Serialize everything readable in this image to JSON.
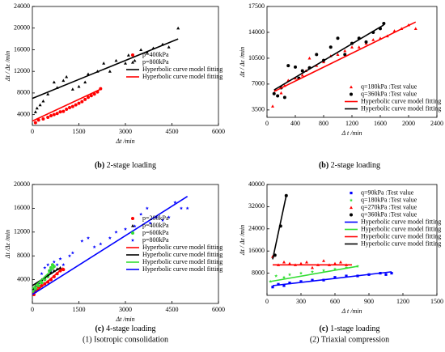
{
  "chart_data": [
    {
      "type": "scatter",
      "xlabel": "Δt /min",
      "ylabel": "Δt / Δε /min",
      "xlim": [
        0,
        6000
      ],
      "xticks": [
        0,
        1500,
        3000,
        4500,
        6000
      ],
      "ylim": [
        2000,
        24000
      ],
      "yticks": [
        4000,
        8000,
        12000,
        16000,
        20000,
        24000
      ],
      "legend": "center right",
      "caption_tag": "(b)",
      "caption": "2-stage loading",
      "series": [
        {
          "name": "p=400kPa",
          "color": "#ff0000",
          "marker": "circle",
          "x": [
            100,
            200,
            350,
            500,
            600,
            700,
            800,
            900,
            1000,
            1100,
            1200,
            1300,
            1400,
            1500,
            1600,
            1700,
            1800,
            1900,
            2000,
            2100,
            2200
          ],
          "values": [
            2500,
            3000,
            3200,
            3500,
            3800,
            4000,
            4200,
            4500,
            4600,
            5000,
            5300,
            5500,
            5800,
            6100,
            6400,
            6800,
            7200,
            7500,
            7800,
            8200,
            8800
          ]
        },
        {
          "name": "p=800kPa",
          "color": "#000000",
          "marker": "triangle",
          "x": [
            100,
            150,
            250,
            350,
            500,
            700,
            800,
            1000,
            1100,
            1300,
            1500,
            1700,
            1800,
            2100,
            2300,
            2500,
            2700,
            3000,
            3100,
            3300,
            3500,
            3700,
            3900,
            4200,
            4400,
            4700
          ],
          "values": [
            4500,
            5200,
            5800,
            6500,
            7800,
            10000,
            9000,
            10300,
            11000,
            8700,
            9200,
            10000,
            11500,
            12000,
            13500,
            12000,
            14000,
            13500,
            15000,
            14000,
            16000,
            15500,
            16300,
            17000,
            16500,
            20000
          ]
        },
        {
          "name": "Hyperbolic curve model fitting",
          "color": "#000000",
          "marker": "line",
          "x": [
            0,
            4700
          ],
          "values": [
            7000,
            18000
          ]
        },
        {
          "name": "Hyperbolic curve model fitting",
          "color": "#ff0000",
          "marker": "line",
          "x": [
            0,
            2200
          ],
          "values": [
            2800,
            8700
          ]
        }
      ]
    },
    {
      "type": "scatter",
      "xlabel": "Δ t /min",
      "ylabel": "Δt / Δε /min",
      "xlim": [
        0,
        2400
      ],
      "xticks": [
        0,
        400,
        800,
        1200,
        1600,
        2000,
        2400
      ],
      "ylim": [
        2500,
        17500
      ],
      "yticks": [
        3500,
        7000,
        10500,
        14000,
        17500
      ],
      "legend": "lower right",
      "caption_tag": "(b)",
      "caption": "2-stage loading",
      "series": [
        {
          "name": "q=180kPa :Test value",
          "color": "#ff0000",
          "marker": "triangle",
          "x": [
            80,
            120,
            200,
            250,
            300,
            400,
            500,
            550,
            600,
            700,
            800,
            900,
            1000,
            1100,
            1200,
            1300,
            1400,
            1500,
            1600,
            1700,
            1800,
            1900,
            2000,
            2100
          ],
          "values": [
            4000,
            6200,
            5800,
            6800,
            7500,
            7800,
            8200,
            8800,
            10500,
            9500,
            10000,
            10800,
            11000,
            11500,
            12000,
            12000,
            12500,
            13000,
            13200,
            13500,
            14200,
            14500,
            15000,
            14500
          ]
        },
        {
          "name": "q=360kPa :Test value",
          "color": "#000000",
          "marker": "circle",
          "x": [
            100,
            150,
            200,
            250,
            300,
            400,
            450,
            500,
            600,
            700,
            800,
            900,
            1000,
            1100,
            1200,
            1300,
            1400,
            1500,
            1600,
            1650
          ],
          "values": [
            5700,
            5400,
            6500,
            5200,
            9500,
            9300,
            7800,
            8800,
            9200,
            11000,
            10200,
            12000,
            13200,
            11000,
            12500,
            13200,
            12700,
            14000,
            14500,
            15200
          ]
        },
        {
          "name": "Hyperbolic curve model fitting",
          "color": "#ff0000",
          "marker": "line",
          "x": [
            100,
            2100
          ],
          "values": [
            6000,
            15400
          ]
        },
        {
          "name": "Hyperbolic curve model fitting",
          "color": "#000000",
          "marker": "line",
          "x": [
            100,
            1650
          ],
          "values": [
            6200,
            15000
          ]
        }
      ]
    },
    {
      "type": "scatter",
      "xlabel": "Δt /min",
      "ylabel": "Δt /Δε /min",
      "xlim": [
        0,
        6000
      ],
      "xticks": [
        0,
        1500,
        3000,
        4500,
        6000
      ],
      "ylim": [
        0,
        20000
      ],
      "yticks": [
        4000,
        8000,
        12000,
        16000,
        20000
      ],
      "legend": "center right",
      "caption_tag": "(c)",
      "caption": "4-stage loading",
      "series": [
        {
          "name": "p=200kPa",
          "color": "#ff0000",
          "marker": "circle",
          "x": [
            50,
            100,
            150,
            200,
            300,
            400,
            500,
            600,
            700,
            800,
            900,
            1000
          ],
          "values": [
            1500,
            2000,
            2300,
            2800,
            3000,
            3300,
            3600,
            4000,
            4500,
            5000,
            5500,
            5700
          ]
        },
        {
          "name": "p=400kPa",
          "color": "#000000",
          "marker": "triangle",
          "x": [
            50,
            100,
            200,
            300,
            400,
            500,
            600,
            700,
            800,
            900
          ],
          "values": [
            2500,
            3000,
            3500,
            4000,
            4400,
            4800,
            5200,
            5500,
            5800,
            6000
          ]
        },
        {
          "name": "p=600kPa",
          "color": "#33dd33",
          "marker": "circle",
          "x": [
            50,
            100,
            200,
            300,
            400,
            500,
            550,
            600,
            650,
            700
          ],
          "values": [
            2000,
            2500,
            3000,
            3500,
            4000,
            4500,
            5500,
            6000,
            6500,
            6200
          ]
        },
        {
          "name": "p=800kPa",
          "color": "#0000ff",
          "marker": "star",
          "x": [
            100,
            200,
            300,
            400,
            500,
            600,
            700,
            800,
            900,
            1000,
            1200,
            1300,
            1600,
            1800,
            2000,
            2200,
            2500,
            2700,
            3000,
            3300,
            3500,
            3700,
            3800,
            4000,
            4200,
            4400,
            4600,
            4800,
            5000
          ],
          "values": [
            2000,
            3500,
            5000,
            6000,
            6500,
            5500,
            7000,
            6500,
            7500,
            6500,
            8000,
            8500,
            10500,
            11000,
            9500,
            10000,
            11000,
            12000,
            12500,
            13000,
            15000,
            16000,
            13500,
            14500,
            14000,
            14500,
            17000,
            16000,
            16000
          ]
        },
        {
          "name": "Hyperbolic curve model fitting",
          "color": "#ff0000",
          "marker": "line",
          "x": [
            0,
            1000
          ],
          "values": [
            1500,
            6000
          ]
        },
        {
          "name": "Hyperbolic curve model fitting",
          "color": "#000000",
          "marker": "line",
          "x": [
            0,
            900
          ],
          "values": [
            3000,
            6000
          ]
        },
        {
          "name": "Hyperbolic curve model fitting",
          "color": "#33dd33",
          "marker": "line",
          "x": [
            0,
            700
          ],
          "values": [
            2500,
            6000
          ]
        },
        {
          "name": "Hyperbolic curve model fitting",
          "color": "#0000ff",
          "marker": "line",
          "x": [
            0,
            5000
          ],
          "values": [
            1500,
            18000
          ]
        }
      ]
    },
    {
      "type": "scatter",
      "xlabel": "Δ t /min",
      "ylabel": "Δt / Δε /min",
      "xlim": [
        0,
        1500
      ],
      "xticks": [
        0,
        300,
        600,
        900,
        1200,
        1500
      ],
      "ylim": [
        0,
        40000
      ],
      "yticks": [
        8000,
        16000,
        24000,
        32000,
        40000
      ],
      "legend": "upper right",
      "caption_tag": "(c)",
      "caption": "1-stage loading",
      "series": [
        {
          "name": "q=90kPa :Test value",
          "color": "#0000ff",
          "marker": "square",
          "x": [
            50,
            100,
            150,
            200,
            300,
            400,
            500,
            600,
            700,
            800,
            900,
            1000,
            1050,
            1100
          ],
          "values": [
            3000,
            4000,
            3500,
            4500,
            5000,
            5500,
            5500,
            6500,
            7000,
            7000,
            7500,
            8000,
            7500,
            8000
          ]
        },
        {
          "name": "q=180kPa :Test value",
          "color": "#33dd33",
          "marker": "star",
          "x": [
            30,
            80,
            150,
            200,
            300,
            400,
            500,
            600,
            700,
            800
          ],
          "values": [
            5000,
            7000,
            6500,
            7500,
            8000,
            8500,
            9000,
            9500,
            10000,
            10500
          ]
        },
        {
          "name": "q=270kPa :Test value",
          "color": "#ff0000",
          "marker": "triangle",
          "x": [
            50,
            100,
            150,
            200,
            250,
            300,
            350,
            400,
            450,
            500,
            550,
            600,
            650,
            700
          ],
          "values": [
            14000,
            11000,
            12000,
            11500,
            11000,
            11500,
            12000,
            10000,
            11000,
            12500,
            11000,
            11500,
            12000,
            11000
          ]
        },
        {
          "name": "q=360kPa :Test value",
          "color": "#000000",
          "marker": "circle",
          "x": [
            70,
            120,
            170
          ],
          "values": [
            14500,
            25000,
            36000
          ]
        },
        {
          "name": "Hyperbolic curve model fitting",
          "color": "#0000ff",
          "marker": "line",
          "x": [
            50,
            1100
          ],
          "values": [
            3500,
            8500
          ]
        },
        {
          "name": "Hyperbolic curve model fitting",
          "color": "#33dd33",
          "marker": "line",
          "x": [
            30,
            800
          ],
          "values": [
            5000,
            10500
          ]
        },
        {
          "name": "Hyperbolic curve model fitting",
          "color": "#ff0000",
          "marker": "line",
          "x": [
            50,
            750
          ],
          "values": [
            11000,
            11000
          ]
        },
        {
          "name": "Hyperbolic curve model fitting",
          "color": "#000000",
          "marker": "line",
          "x": [
            50,
            170
          ],
          "values": [
            13000,
            36000
          ]
        }
      ]
    }
  ],
  "figure_labels": [
    "(1) Isotropic consolidation",
    "(2) Triaxial compression"
  ]
}
